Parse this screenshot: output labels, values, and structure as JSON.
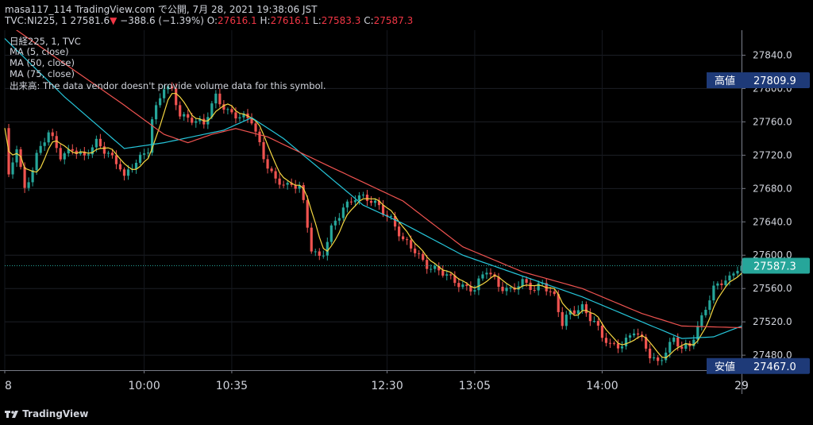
{
  "header": {
    "publish_line": "masa117_114 TradingView.com で公開, 7月 28, 2021 19:38:06 JST",
    "symbol": "TVC:NI225, 1",
    "last": "27581.6",
    "down_arrow": "▼",
    "change": "−388.6 (−1.39%)",
    "o_label": "O:",
    "o": "27616.1",
    "h_label": "H:",
    "h": "27616.1",
    "l_label": "L:",
    "l": "27583.3",
    "c_label": "C:",
    "c": "27587.3"
  },
  "legend": {
    "title": "日経225, 1, TVC",
    "ma5": "MA (5, close)",
    "ma50": "MA (50, close)",
    "ma75": "MA (75, close)",
    "volume_note": "出来高: The data vendor doesn't provide volume data for this symbol."
  },
  "markers": {
    "high_label": "高値",
    "high_value": "27809.9",
    "low_label": "安値",
    "low_value": "27467.0",
    "last_value": "27587.3"
  },
  "footer": {
    "brand": "TradingView",
    "logo_icon": "tradingview-logo-icon"
  },
  "colors": {
    "up": "#26a69a",
    "down": "#ef5350",
    "ma5": "#f5d742",
    "ma50": "#26c6da",
    "ma75": "#ef5350",
    "marker_bg": "#1e3a78",
    "last_bg": "#26a69a",
    "background": "#000000"
  },
  "chart_data": {
    "type": "line",
    "title": "日経225, 1, TVC",
    "xlabel": "",
    "ylabel": "",
    "y_ticks": [
      27480,
      27520,
      27560,
      27600,
      27640,
      27680,
      27720,
      27760,
      27800,
      27840
    ],
    "y_tick_labels": [
      "27480.0",
      "27520.0",
      "27560.0",
      "27600.0",
      "27640.0",
      "27680.0",
      "27720.0",
      "27760.0",
      "27800.0",
      "27840.0"
    ],
    "ylim": [
      27462,
      27870
    ],
    "x_tick_labels": [
      "8",
      "10:00",
      "10:35",
      "12:30",
      "13:05",
      "14:00",
      "29"
    ],
    "x_tick_index": [
      0,
      35,
      57,
      96,
      118,
      150,
      185
    ],
    "x_count": 186,
    "grid": true,
    "legend_position": "top-left",
    "price_anchors": [
      [
        0,
        27750
      ],
      [
        1,
        27690
      ],
      [
        3,
        27730
      ],
      [
        5,
        27680
      ],
      [
        8,
        27720
      ],
      [
        11,
        27745
      ],
      [
        14,
        27720
      ],
      [
        17,
        27730
      ],
      [
        20,
        27715
      ],
      [
        23,
        27735
      ],
      [
        26,
        27725
      ],
      [
        29,
        27705
      ],
      [
        30,
        27690
      ],
      [
        33,
        27712
      ],
      [
        36,
        27730
      ],
      [
        37,
        27765
      ],
      [
        40,
        27800
      ],
      [
        42,
        27795
      ],
      [
        44,
        27770
      ],
      [
        47,
        27765
      ],
      [
        50,
        27755
      ],
      [
        53,
        27790
      ],
      [
        56,
        27775
      ],
      [
        59,
        27765
      ],
      [
        62,
        27760
      ],
      [
        65,
        27720
      ],
      [
        68,
        27690
      ],
      [
        71,
        27680
      ],
      [
        74,
        27685
      ],
      [
        75,
        27665
      ],
      [
        77,
        27610
      ],
      [
        79,
        27595
      ],
      [
        80,
        27600
      ],
      [
        82,
        27630
      ],
      [
        85,
        27660
      ],
      [
        88,
        27670
      ],
      [
        91,
        27665
      ],
      [
        94,
        27660
      ],
      [
        97,
        27645
      ],
      [
        100,
        27615
      ],
      [
        103,
        27605
      ],
      [
        106,
        27590
      ],
      [
        109,
        27580
      ],
      [
        112,
        27570
      ],
      [
        115,
        27565
      ],
      [
        118,
        27560
      ],
      [
        121,
        27580
      ],
      [
        124,
        27565
      ],
      [
        127,
        27560
      ],
      [
        130,
        27565
      ],
      [
        133,
        27558
      ],
      [
        135,
        27570
      ],
      [
        138,
        27550
      ],
      [
        140,
        27515
      ],
      [
        142,
        27530
      ],
      [
        145,
        27540
      ],
      [
        148,
        27520
      ],
      [
        150,
        27500
      ],
      [
        152,
        27490
      ],
      [
        155,
        27495
      ],
      [
        158,
        27510
      ],
      [
        160,
        27495
      ],
      [
        162,
        27478
      ],
      [
        164,
        27472
      ],
      [
        166,
        27488
      ],
      [
        168,
        27500
      ],
      [
        170,
        27485
      ],
      [
        172,
        27490
      ],
      [
        174,
        27515
      ],
      [
        176,
        27540
      ],
      [
        178,
        27560
      ],
      [
        180,
        27565
      ],
      [
        182,
        27570
      ],
      [
        184,
        27587
      ],
      [
        185,
        27587
      ]
    ],
    "ma75_anchors": [
      [
        0,
        27880
      ],
      [
        15,
        27830
      ],
      [
        30,
        27780
      ],
      [
        40,
        27745
      ],
      [
        46,
        27735
      ],
      [
        52,
        27745
      ],
      [
        58,
        27752
      ],
      [
        66,
        27742
      ],
      [
        80,
        27710
      ],
      [
        100,
        27665
      ],
      [
        115,
        27610
      ],
      [
        130,
        27580
      ],
      [
        145,
        27560
      ],
      [
        160,
        27530
      ],
      [
        170,
        27515
      ],
      [
        185,
        27513
      ]
    ],
    "ma50_anchors": [
      [
        0,
        27860
      ],
      [
        15,
        27790
      ],
      [
        30,
        27728
      ],
      [
        40,
        27735
      ],
      [
        55,
        27750
      ],
      [
        62,
        27765
      ],
      [
        70,
        27740
      ],
      [
        80,
        27700
      ],
      [
        90,
        27660
      ],
      [
        100,
        27638
      ],
      [
        115,
        27600
      ],
      [
        130,
        27575
      ],
      [
        145,
        27550
      ],
      [
        160,
        27520
      ],
      [
        170,
        27500
      ],
      [
        178,
        27502
      ],
      [
        185,
        27515
      ]
    ],
    "series": [
      {
        "name": "MA (5, close)"
      },
      {
        "name": "MA (50, close)"
      },
      {
        "name": "MA (75, close)"
      }
    ]
  }
}
